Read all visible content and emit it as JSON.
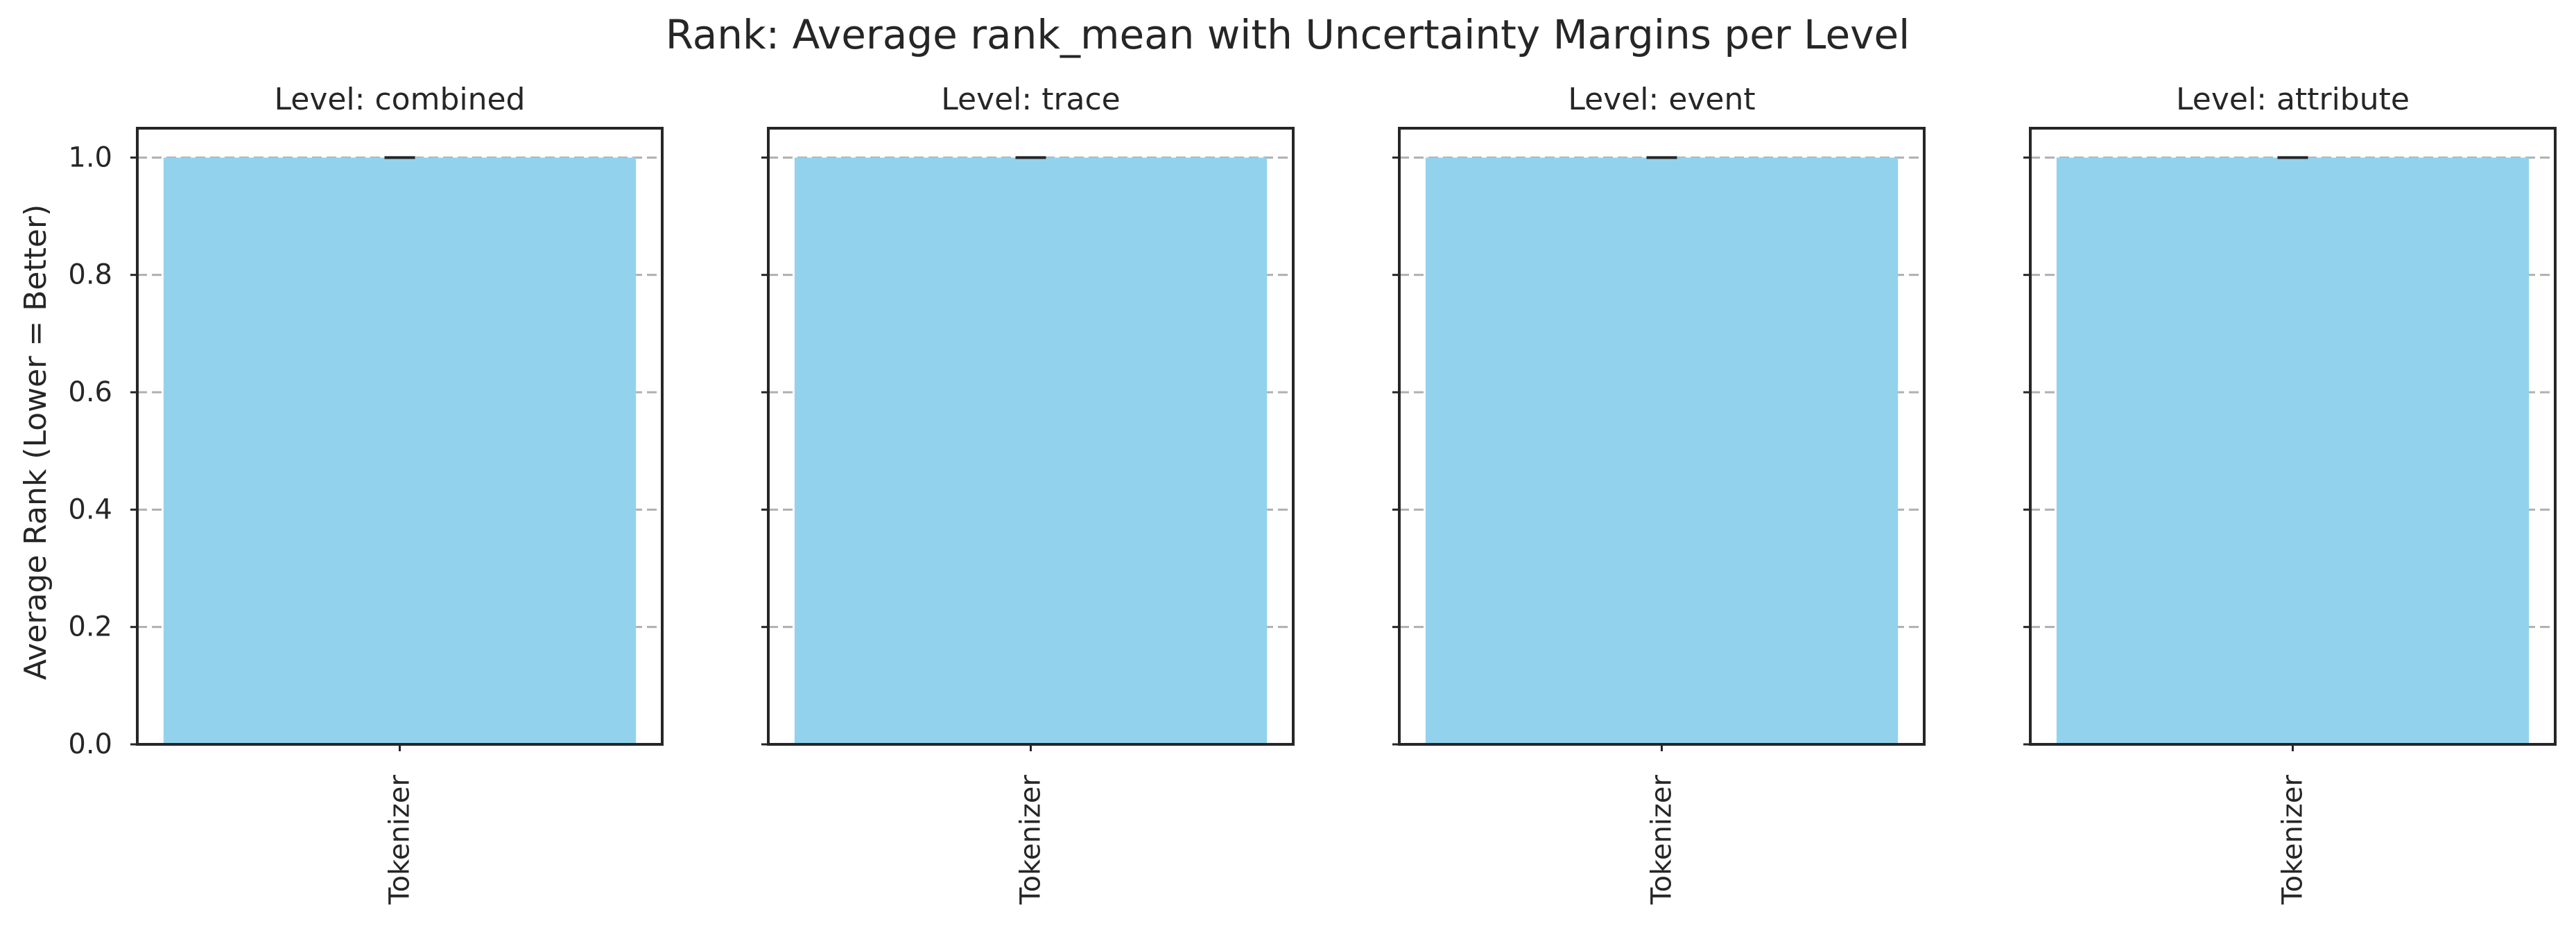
{
  "chart_data": {
    "type": "bar",
    "title": "Rank: Average rank_mean with Uncertainty Margins per Level",
    "ylabel": "Average Rank (Lower = Better)",
    "ylim": [
      0,
      1.05
    ],
    "yticks": [
      0.0,
      0.2,
      0.4,
      0.6,
      0.8,
      1.0
    ],
    "ytick_labels": [
      "0.0",
      "0.2",
      "0.4",
      "0.6",
      "0.8",
      "1.0"
    ],
    "grid": "y, dashed",
    "shared_y": true,
    "bar_color": "#93d2ed",
    "errorbar_color": "#262626",
    "panels": [
      {
        "title": "Level: combined",
        "categories": [
          "Tokenizer"
        ],
        "values": [
          1.0
        ],
        "errors": [
          0.0
        ]
      },
      {
        "title": "Level: trace",
        "categories": [
          "Tokenizer"
        ],
        "values": [
          1.0
        ],
        "errors": [
          0.0
        ]
      },
      {
        "title": "Level: event",
        "categories": [
          "Tokenizer"
        ],
        "values": [
          1.0
        ],
        "errors": [
          0.0
        ]
      },
      {
        "title": "Level: attribute",
        "categories": [
          "Tokenizer"
        ],
        "values": [
          1.0
        ],
        "errors": [
          0.0
        ]
      }
    ]
  }
}
